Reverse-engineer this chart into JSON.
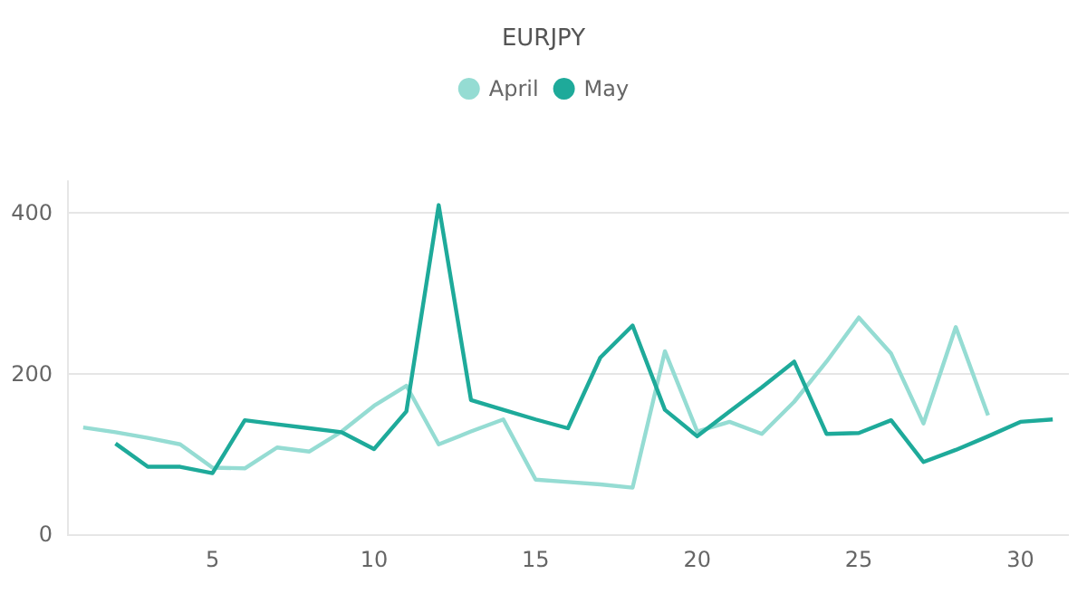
{
  "chart_data": {
    "type": "line",
    "title": "EURJPY",
    "xlim": [
      0.5,
      31.5
    ],
    "xticks": [
      5,
      10,
      15,
      20,
      25,
      30
    ],
    "ylim": [
      0,
      440
    ],
    "yticks": [
      0,
      200,
      400
    ],
    "grid": "y",
    "legend": "top",
    "marker": "none",
    "series": [
      {
        "name": "April",
        "color": "#95dcd3",
        "x": [
          1,
          2,
          3,
          4,
          5,
          6,
          7,
          8,
          9,
          10,
          11,
          12,
          13,
          14,
          15,
          16,
          17,
          18,
          19,
          20,
          21,
          22,
          23,
          24,
          25,
          26,
          27,
          28,
          29
        ],
        "values": [
          133,
          127,
          120,
          112,
          83,
          82,
          108,
          103,
          128,
          160,
          185,
          112,
          128,
          143,
          68,
          65,
          62,
          58,
          228,
          128,
          140,
          125,
          165,
          215,
          270,
          225,
          138,
          258,
          148
        ]
      },
      {
        "name": "May",
        "color": "#1eaa9a",
        "x": [
          2,
          3,
          4,
          5,
          6,
          7,
          8,
          9,
          10,
          11,
          12,
          13,
          14,
          15,
          16,
          17,
          18,
          19,
          20,
          21,
          22,
          23,
          24,
          25,
          26,
          27,
          28,
          29,
          30,
          31
        ],
        "values": [
          113,
          84,
          84,
          76,
          142,
          137,
          132,
          127,
          106,
          153,
          410,
          167,
          155,
          143,
          132,
          220,
          260,
          155,
          122,
          153,
          183,
          215,
          125,
          126,
          142,
          90,
          105,
          122,
          140,
          143
        ]
      }
    ]
  }
}
